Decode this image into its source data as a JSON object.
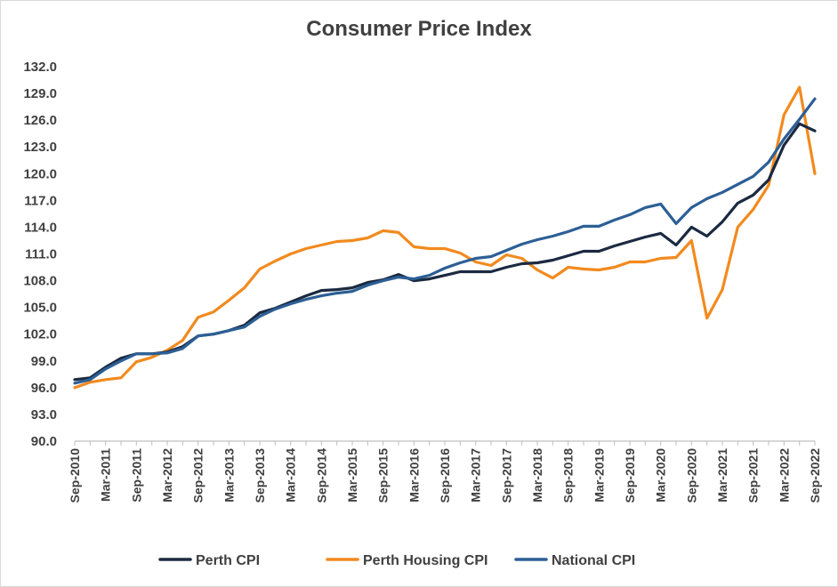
{
  "chart_data": {
    "type": "line",
    "title": "Consumer Price Index",
    "xlabel": "",
    "ylabel": "",
    "ylim": [
      90,
      132
    ],
    "y_ticks": [
      "90.0",
      "93.0",
      "96.0",
      "99.0",
      "102.0",
      "105.0",
      "108.0",
      "111.0",
      "114.0",
      "117.0",
      "120.0",
      "123.0",
      "126.0",
      "129.0",
      "132.0"
    ],
    "x_tick_labels": [
      "Sep-2010",
      "Mar-2011",
      "Sep-2011",
      "Mar-2012",
      "Sep-2012",
      "Mar-2013",
      "Sep-2013",
      "Mar-2014",
      "Sep-2014",
      "Mar-2015",
      "Sep-2015",
      "Mar-2016",
      "Sep-2016",
      "Mar-2017",
      "Sep-2017",
      "Mar-2018",
      "Sep-2018",
      "Mar-2019",
      "Sep-2019",
      "Mar-2020",
      "Sep-2020",
      "Mar-2021",
      "Sep-2021",
      "Mar-2022",
      "Sep-2022"
    ],
    "x": [
      "Sep-2010",
      "Dec-2010",
      "Mar-2011",
      "Jun-2011",
      "Sep-2011",
      "Dec-2011",
      "Mar-2012",
      "Jun-2012",
      "Sep-2012",
      "Dec-2012",
      "Mar-2013",
      "Jun-2013",
      "Sep-2013",
      "Dec-2013",
      "Mar-2014",
      "Jun-2014",
      "Sep-2014",
      "Dec-2014",
      "Mar-2015",
      "Jun-2015",
      "Sep-2015",
      "Dec-2015",
      "Mar-2016",
      "Jun-2016",
      "Sep-2016",
      "Dec-2016",
      "Mar-2017",
      "Jun-2017",
      "Sep-2017",
      "Dec-2017",
      "Mar-2018",
      "Jun-2018",
      "Sep-2018",
      "Dec-2018",
      "Mar-2019",
      "Jun-2019",
      "Sep-2019",
      "Dec-2019",
      "Mar-2020",
      "Jun-2020",
      "Sep-2020",
      "Dec-2020",
      "Mar-2021",
      "Jun-2021",
      "Sep-2021",
      "Dec-2021",
      "Mar-2022",
      "Jun-2022",
      "Sep-2022"
    ],
    "grid": false,
    "legend_position": "bottom",
    "series": [
      {
        "name": "Perth CPI",
        "color": "#1b2a41",
        "values": [
          96.9,
          97.1,
          98.3,
          99.3,
          99.8,
          99.8,
          100.0,
          100.6,
          101.8,
          102.0,
          102.4,
          103.0,
          104.4,
          104.9,
          105.6,
          106.3,
          106.9,
          107.0,
          107.2,
          107.8,
          108.1,
          108.7,
          108.0,
          108.2,
          108.6,
          109.0,
          109.0,
          109.0,
          109.5,
          109.9,
          110.0,
          110.3,
          110.8,
          111.3,
          111.3,
          111.9,
          112.4,
          112.9,
          113.3,
          112.0,
          114.0,
          113.0,
          114.6,
          116.7,
          117.6,
          119.3,
          123.2,
          125.6,
          124.8
        ]
      },
      {
        "name": "Perth Housing CPI",
        "color": "#f28a1e",
        "values": [
          96.0,
          96.6,
          96.9,
          97.1,
          98.9,
          99.4,
          100.2,
          101.3,
          103.9,
          104.5,
          105.8,
          107.2,
          109.3,
          110.2,
          111.0,
          111.6,
          112.0,
          112.4,
          112.5,
          112.8,
          113.6,
          113.4,
          111.8,
          111.6,
          111.6,
          111.1,
          110.1,
          109.7,
          110.9,
          110.5,
          109.2,
          108.3,
          109.5,
          109.3,
          109.2,
          109.5,
          110.1,
          110.1,
          110.5,
          110.6,
          112.5,
          103.8,
          107.0,
          114.0,
          116.0,
          118.7,
          126.6,
          129.7,
          120.0
        ]
      },
      {
        "name": "National CPI",
        "color": "#2c5f95",
        "values": [
          96.5,
          96.9,
          98.1,
          99.0,
          99.8,
          99.8,
          99.9,
          100.4,
          101.8,
          102.0,
          102.4,
          102.8,
          104.0,
          104.8,
          105.4,
          105.9,
          106.3,
          106.6,
          106.8,
          107.5,
          108.0,
          108.4,
          108.2,
          108.6,
          109.4,
          110.0,
          110.5,
          110.7,
          111.4,
          112.1,
          112.6,
          113.0,
          113.5,
          114.1,
          114.1,
          114.8,
          115.4,
          116.2,
          116.6,
          114.4,
          116.2,
          117.2,
          117.9,
          118.8,
          119.7,
          121.3,
          123.9,
          126.1,
          128.4
        ]
      }
    ]
  }
}
